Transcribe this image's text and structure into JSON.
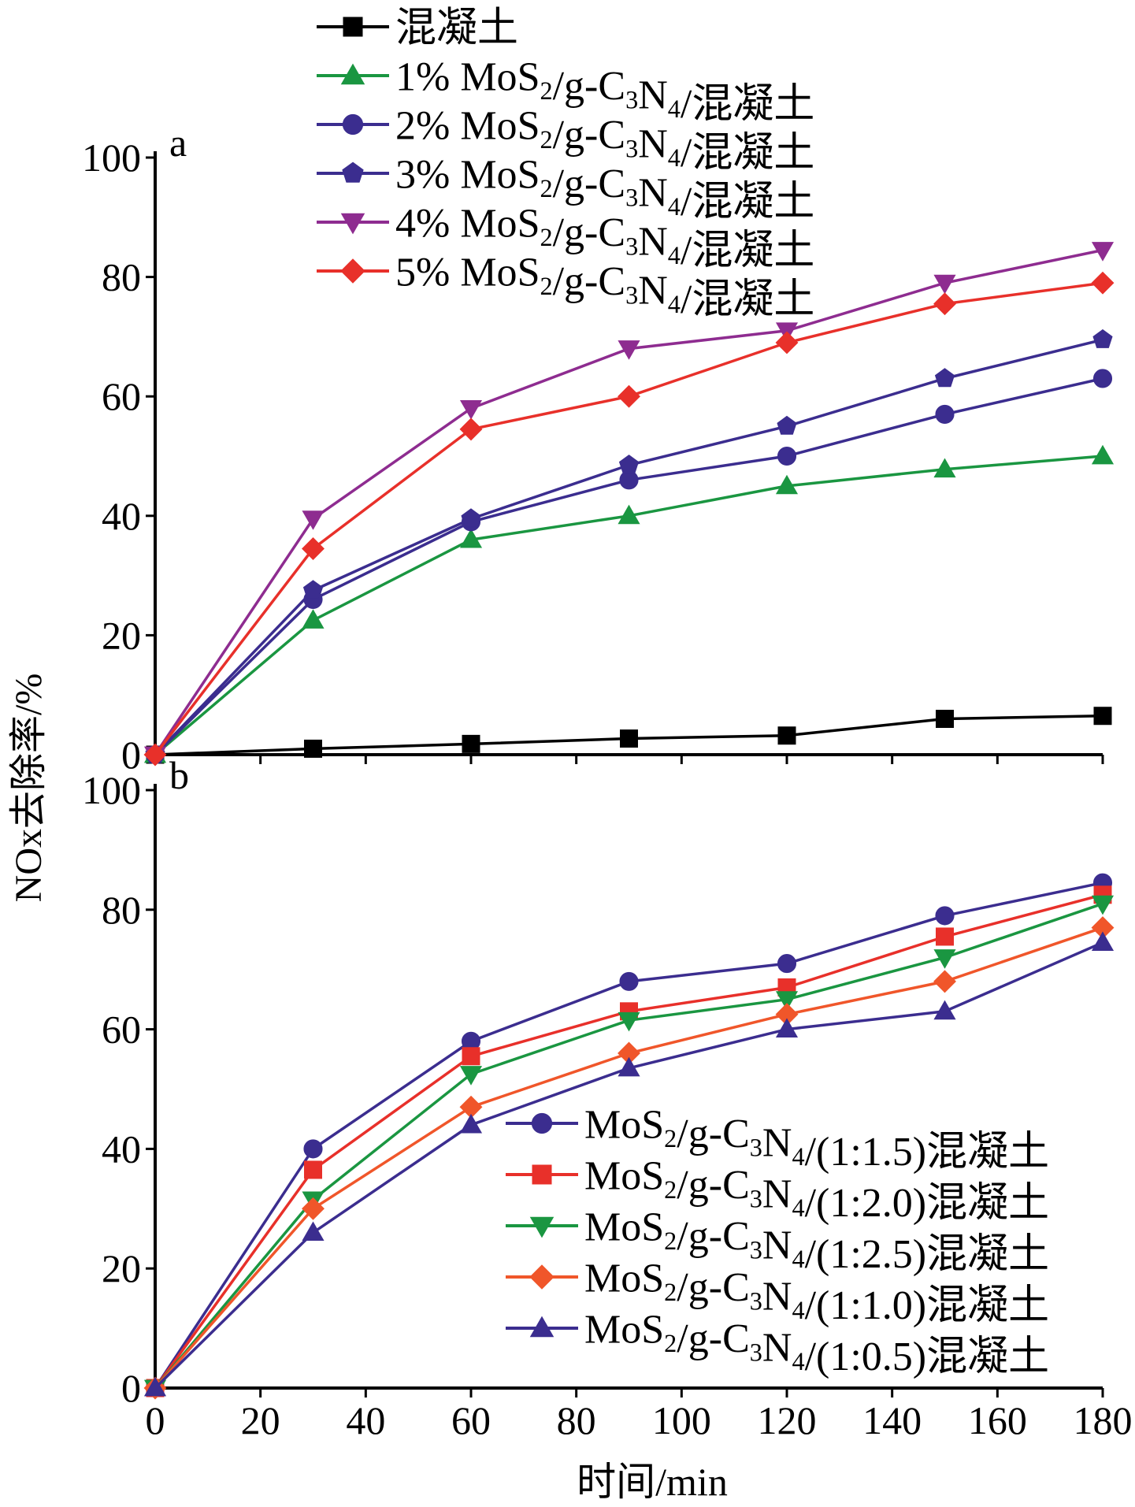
{
  "figure": {
    "ylabel": "NOx去除率/%",
    "xlabel": "时间/min"
  },
  "chart_data": [
    {
      "id": "a",
      "panel_label": "a",
      "type": "line",
      "xlim": [
        0,
        180
      ],
      "ylim": [
        0,
        100
      ],
      "x_ticks": [
        0,
        20,
        40,
        60,
        80,
        100,
        120,
        140,
        160,
        180
      ],
      "y_ticks": [
        0,
        20,
        40,
        60,
        80,
        100
      ],
      "legend_position": "top-left-outside",
      "x": [
        0,
        30,
        60,
        90,
        120,
        150,
        180
      ],
      "series": [
        {
          "name": "混凝土",
          "color": "#000000",
          "marker": "square",
          "values": [
            0,
            1,
            1.8,
            2.7,
            3.2,
            6,
            6.5
          ]
        },
        {
          "name": "1% MoS2/g-C3N4/混凝土",
          "color": "#1a9641",
          "marker": "triangle-up",
          "values": [
            0,
            22.5,
            36,
            40,
            45,
            47.8,
            50
          ]
        },
        {
          "name": "2% MoS2/g-C3N4/混凝土",
          "color": "#3b2d8f",
          "marker": "circle",
          "values": [
            0,
            26,
            39,
            46,
            50,
            57,
            63
          ]
        },
        {
          "name": "3% MoS2/g-C3N4/混凝土",
          "color": "#3b2d8f",
          "marker": "pentagon",
          "values": [
            0,
            27.5,
            39.5,
            48.5,
            55,
            63,
            69.5
          ]
        },
        {
          "name": "4% MoS2/g-C3N4/混凝土",
          "color": "#8e2c90",
          "marker": "triangle-down",
          "values": [
            0,
            39.5,
            58,
            68,
            71,
            79,
            84.5
          ]
        },
        {
          "name": "5% MoS2/g-C3N4/混凝土",
          "color": "#e8302a",
          "marker": "diamond",
          "values": [
            0,
            34.5,
            54.5,
            60,
            69,
            75.5,
            79
          ]
        }
      ]
    },
    {
      "id": "b",
      "panel_label": "b",
      "type": "line",
      "xlim": [
        0,
        180
      ],
      "ylim": [
        0,
        100
      ],
      "x_ticks": [
        0,
        20,
        40,
        60,
        80,
        100,
        120,
        140,
        160,
        180
      ],
      "y_ticks": [
        0,
        20,
        40,
        60,
        80,
        100
      ],
      "legend_position": "bottom-right",
      "x": [
        0,
        30,
        60,
        90,
        120,
        150,
        180
      ],
      "series": [
        {
          "name": "MoS2/g-C3N4/(1:1.5)混凝土",
          "color": "#3b2d8f",
          "marker": "circle",
          "values": [
            0,
            40,
            58,
            68,
            71,
            79,
            84.5
          ]
        },
        {
          "name": "MoS2/g-C3N4/(1:2.0)混凝土",
          "color": "#e8302a",
          "marker": "square",
          "values": [
            0,
            36.5,
            55.5,
            63,
            67,
            75.5,
            82.5
          ]
        },
        {
          "name": "MoS2/g-C3N4/(1:2.5)混凝土",
          "color": "#1a9641",
          "marker": "triangle-down",
          "values": [
            0,
            31.5,
            52.5,
            61.5,
            65,
            72,
            81
          ]
        },
        {
          "name": "MoS2/g-C3N4/(1:1.0)混凝土",
          "color": "#f0562a",
          "marker": "diamond",
          "values": [
            0,
            30,
            47,
            56,
            62.5,
            68,
            77
          ]
        },
        {
          "name": "MoS2/g-C3N4/(1:0.5)混凝土",
          "color": "#3b2d8f",
          "marker": "triangle-up",
          "values": [
            0,
            26,
            44,
            53.5,
            60,
            63,
            74.5
          ]
        }
      ]
    }
  ]
}
